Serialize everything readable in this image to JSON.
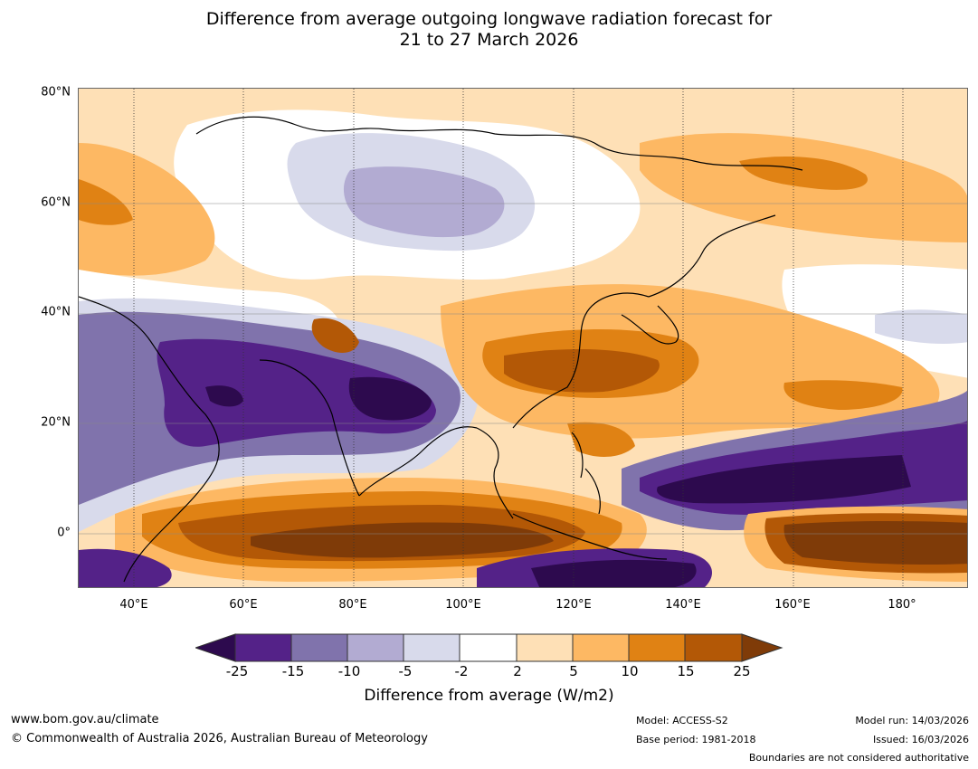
{
  "title": {
    "line1": "Difference from average outgoing longwave radiation forecast for",
    "line2": "21 to 27 March 2026"
  },
  "map": {
    "lat_labels": [
      "80°N",
      "60°N",
      "40°N",
      "20°N",
      "0°"
    ],
    "lon_labels": [
      "40°E",
      "60°E",
      "80°E",
      "100°E",
      "120°E",
      "140°E",
      "160°E",
      "180°"
    ]
  },
  "colorbar": {
    "ticks": [
      "-25",
      "-15",
      "-10",
      "-5",
      "-2",
      "2",
      "5",
      "10",
      "15",
      "25"
    ],
    "label": "Difference from average (W/m2)",
    "colors": {
      "below_min": "#2d0a4e",
      "b1": "#542288",
      "b2": "#8073ac",
      "b3": "#b2abd2",
      "b4": "#d8daeb",
      "b5": "#ffffff",
      "b6": "#fee0b6",
      "b7": "#fdb863",
      "b8": "#e08214",
      "b9": "#b35806",
      "above_max": "#7f3b08"
    }
  },
  "footer": {
    "website": "www.bom.gov.au/climate",
    "copyright": "© Commonwealth of Australia 2026, Australian Bureau of Meteorology",
    "model": "Model: ACCESS-S2",
    "base_period": "Base period: 1981-2018",
    "model_run": "Model run: 14/03/2026",
    "issued": "Issued: 16/03/2026",
    "disclaimer": "Boundaries are not considered authoritative"
  }
}
